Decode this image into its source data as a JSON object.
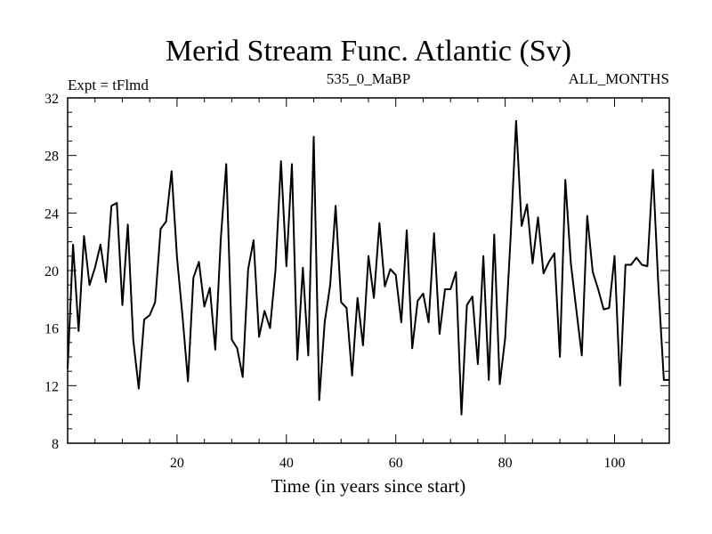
{
  "chart_data": {
    "type": "line",
    "title": "Merid Stream Func. Atlantic (Sv)",
    "subtitle_left": "Expt = tFlmd",
    "subtitle_center": "535_0_MaBP",
    "subtitle_right": "ALL_MONTHS",
    "xlabel": "Time (in years since start)",
    "ylabel": "",
    "xlim": [
      0,
      110
    ],
    "ylim": [
      8,
      32
    ],
    "xticks": [
      20,
      40,
      60,
      80,
      100
    ],
    "yticks": [
      8,
      12,
      16,
      20,
      24,
      28,
      32
    ],
    "line_color": "#000000",
    "series": [
      {
        "name": "Merid Stream Func.",
        "x": [
          0,
          1,
          2,
          3,
          4,
          5,
          6,
          7,
          8,
          9,
          10,
          11,
          12,
          13,
          14,
          15,
          16,
          17,
          18,
          19,
          20,
          21,
          22,
          23,
          24,
          25,
          26,
          27,
          28,
          29,
          30,
          31,
          32,
          33,
          34,
          35,
          36,
          37,
          38,
          39,
          40,
          41,
          42,
          43,
          44,
          45,
          46,
          47,
          48,
          49,
          50,
          51,
          52,
          53,
          54,
          55,
          56,
          57,
          58,
          59,
          60,
          61,
          62,
          63,
          64,
          65,
          66,
          67,
          68,
          69,
          70,
          71,
          72,
          73,
          74,
          75,
          76,
          77,
          78,
          79,
          80,
          81,
          82,
          83,
          84,
          85,
          86,
          87,
          88,
          89,
          90,
          91,
          92,
          93,
          94,
          95,
          96,
          97,
          98,
          99,
          100,
          101,
          102,
          103,
          104,
          105,
          106,
          107,
          108,
          109,
          110
        ],
        "values": [
          13.2,
          21.8,
          15.8,
          22.4,
          19.0,
          20.2,
          21.8,
          19.2,
          24.5,
          24.7,
          17.6,
          23.2,
          15.2,
          11.8,
          16.6,
          16.9,
          17.8,
          22.9,
          23.4,
          26.9,
          20.9,
          16.8,
          12.3,
          19.5,
          20.6,
          17.5,
          18.8,
          14.5,
          22.2,
          27.4,
          15.2,
          14.6,
          12.6,
          20.1,
          22.1,
          15.4,
          17.2,
          16.0,
          20.0,
          27.6,
          20.3,
          27.4,
          13.8,
          20.2,
          14.1,
          29.3,
          11.0,
          16.4,
          19.0,
          24.5,
          17.8,
          17.4,
          12.7,
          18.1,
          14.8,
          21.0,
          18.1,
          23.3,
          18.9,
          20.1,
          19.7,
          16.4,
          22.8,
          14.6,
          17.9,
          18.4,
          16.4,
          22.6,
          15.6,
          18.7,
          18.7,
          19.9,
          10.0,
          17.6,
          18.2,
          13.5,
          21.0,
          12.4,
          22.5,
          12.1,
          15.3,
          22.4,
          30.4,
          23.1,
          24.6,
          20.5,
          23.7,
          19.8,
          20.6,
          21.2,
          14.0,
          26.3,
          20.5,
          17.3,
          14.1,
          23.8,
          19.9,
          18.7,
          17.3,
          17.4,
          21.0,
          12.0,
          20.4,
          20.4,
          20.9,
          20.4,
          20.3,
          27.0,
          19.0,
          12.4,
          12.4
        ]
      }
    ]
  }
}
